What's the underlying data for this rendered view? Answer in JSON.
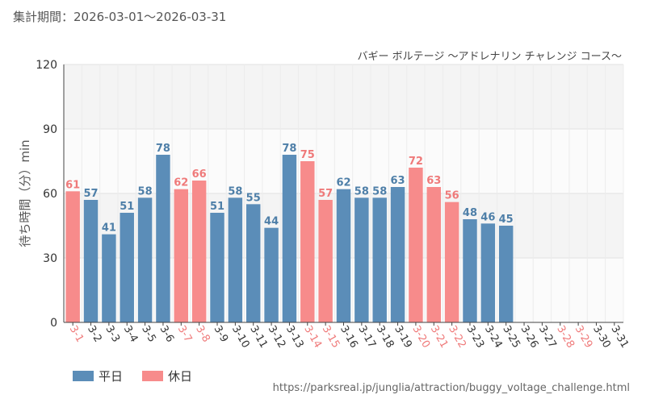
{
  "header": {
    "period": "集計期間：2026-03-01～2026-03-31"
  },
  "footer": {
    "source_url": "https://parksreal.jp/junglia/attraction/buggy_voltage_challenge.html"
  },
  "colors": {
    "weekday": "#5b8db8",
    "holiday": "#f78b8b",
    "weekday_label": "#4e7fa8",
    "holiday_label": "#ef7a7a"
  },
  "chart_data": {
    "type": "bar",
    "title": "バギー ボルテージ ～アドレナリン チャレンジ コース～",
    "xlabel": "",
    "ylabel": "待ち時間（分）min",
    "ylim": [
      0,
      120
    ],
    "yticks": [
      0,
      30,
      60,
      90,
      120
    ],
    "categories": [
      "3-1",
      "3-2",
      "3-3",
      "3-4",
      "3-5",
      "3-6",
      "3-7",
      "3-8",
      "3-9",
      "3-10",
      "3-11",
      "3-12",
      "3-13",
      "3-14",
      "3-15",
      "3-16",
      "3-17",
      "3-18",
      "3-19",
      "3-20",
      "3-21",
      "3-22",
      "3-23",
      "3-24",
      "3-25",
      "3-26",
      "3-27",
      "3-28",
      "3-29",
      "3-30",
      "3-31"
    ],
    "values": [
      61,
      57,
      41,
      51,
      58,
      78,
      62,
      66,
      51,
      58,
      55,
      44,
      78,
      75,
      57,
      62,
      58,
      58,
      63,
      72,
      63,
      56,
      48,
      46,
      45,
      null,
      null,
      null,
      null,
      null,
      null
    ],
    "day_type": [
      "holiday",
      "weekday",
      "weekday",
      "weekday",
      "weekday",
      "weekday",
      "holiday",
      "holiday",
      "weekday",
      "weekday",
      "weekday",
      "weekday",
      "weekday",
      "holiday",
      "holiday",
      "weekday",
      "weekday",
      "weekday",
      "weekday",
      "holiday",
      "holiday",
      "holiday",
      "weekday",
      "weekday",
      "weekday",
      "weekday",
      "weekday",
      "holiday",
      "holiday",
      "weekday",
      "weekday"
    ],
    "legend": [
      {
        "key": "weekday",
        "label": "平日"
      },
      {
        "key": "holiday",
        "label": "休日"
      }
    ]
  }
}
